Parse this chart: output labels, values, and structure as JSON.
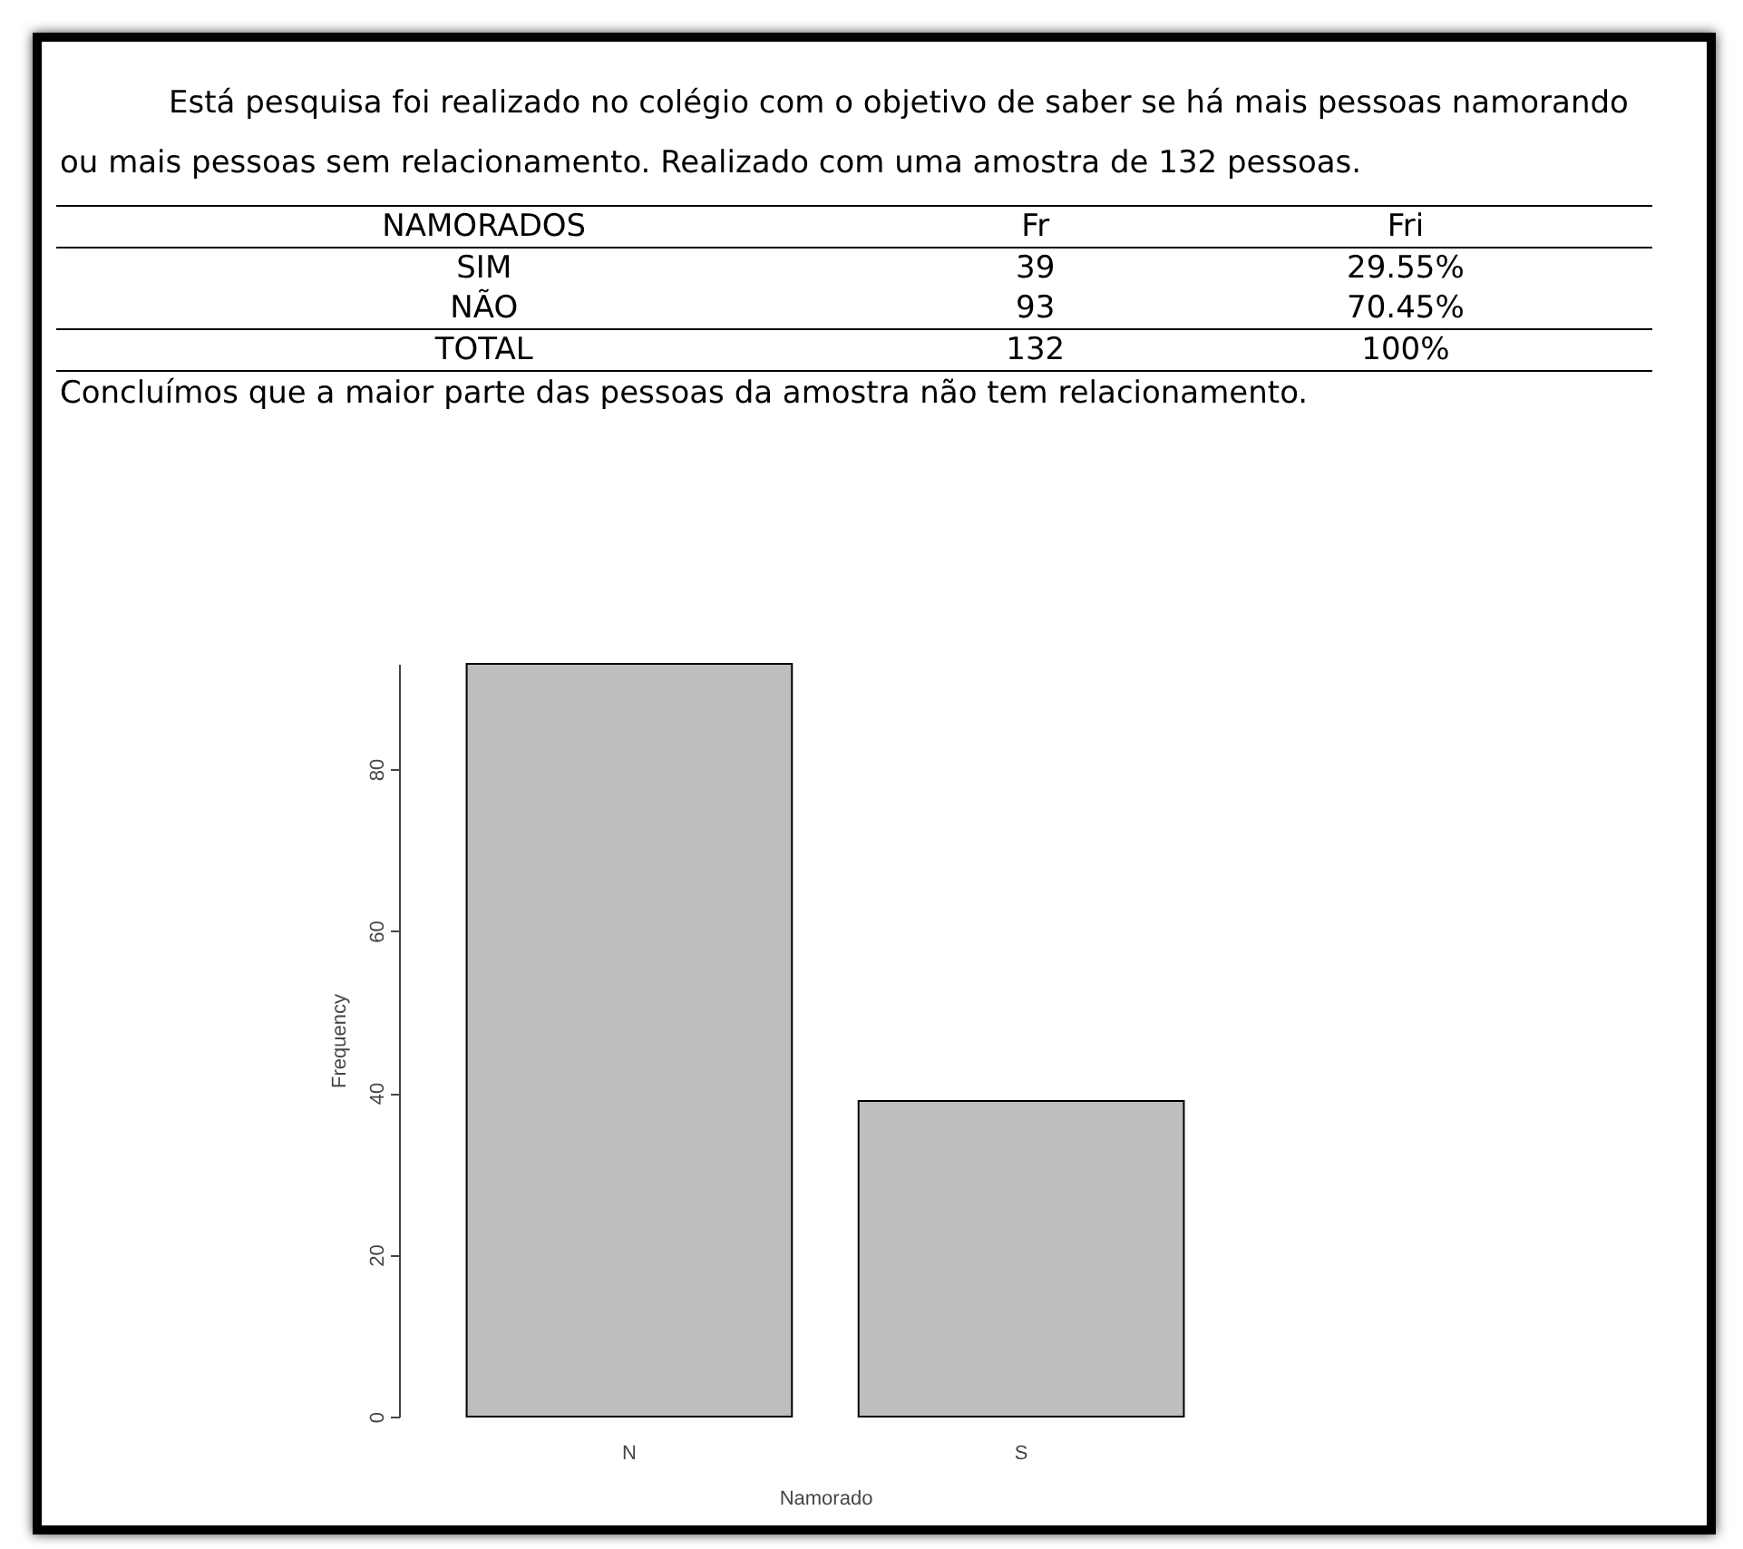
{
  "chart_data": {
    "type": "bar",
    "title": "Está pesquisa foi realizado no colégio com o objetivo de saber se há mais pessoas namorando ou mais pessoas sem relacionamento. Realizado com uma amostra de 132 pessoas.",
    "annotations": [
      "NAMORADOS",
      "Fr",
      "Fri",
      "SIM",
      "39",
      "29.55%",
      "NÃO",
      "93",
      "70.45%",
      "TOTAL",
      "132",
      "100%"
    ],
    "subtitle": "Concluímos que a maior parte das pessoas da amostra não tem relacionamento.",
    "categories": [
      "N",
      "S"
    ],
    "values": [
      93,
      39
    ],
    "color": "#bebebe",
    "xlabel": "Namorado",
    "ylabel": "Frequency",
    "ylim": [
      0,
      93
    ],
    "yticks": [
      0,
      20,
      40,
      60,
      80
    ],
    "grid": false,
    "legend": false
  }
}
